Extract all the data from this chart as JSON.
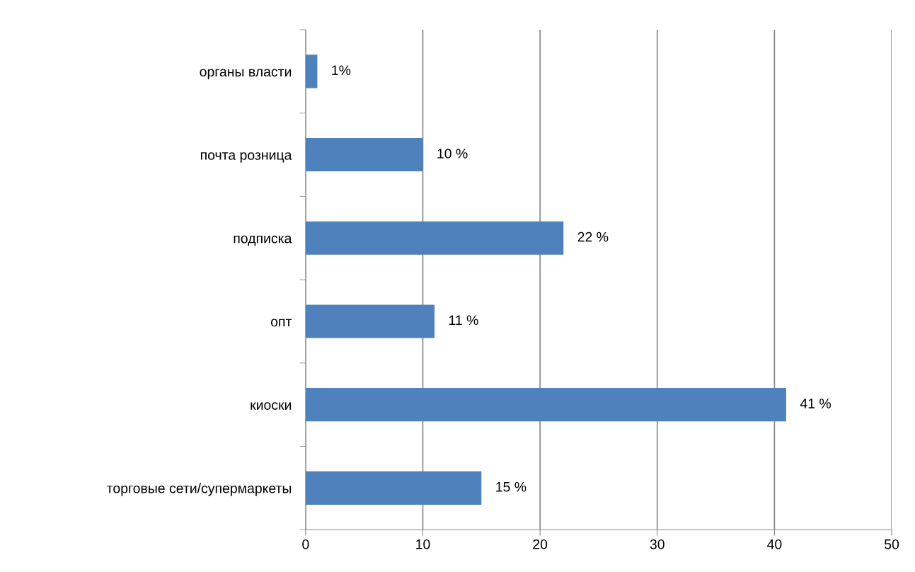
{
  "chart_data": {
    "type": "bar",
    "orientation": "horizontal",
    "categories": [
      "органы власти",
      "почта розница",
      "подписка",
      "опт",
      "киоски",
      "торговые сети/супермаркеты"
    ],
    "values": [
      1,
      10,
      22,
      11,
      41,
      15
    ],
    "value_labels": [
      "1%",
      "10 %",
      "22 %",
      "11 %",
      "41 %",
      "15 %"
    ],
    "color": "#4f81bd",
    "xlim": [
      0,
      50
    ],
    "xticks": [
      0,
      10,
      20,
      30,
      40,
      50
    ],
    "grid": "x",
    "legend": false
  }
}
